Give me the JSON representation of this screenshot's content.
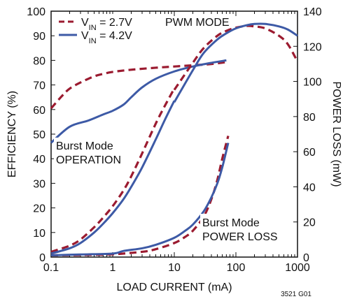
{
  "chart_data": {
    "type": "line",
    "xlabel": "LOAD CURRENT (mA)",
    "ylabel_left": "EFFICIENCY (%)",
    "ylabel_right": "POWER LOSS (mW)",
    "x_scale": "log",
    "xlim": [
      0.1,
      1000
    ],
    "ylim_left": [
      0,
      100
    ],
    "ylim_right": [
      0,
      140
    ],
    "x_ticks": [
      "0.1",
      "1",
      "10",
      "100",
      "1000"
    ],
    "y_ticks_left": [
      "0",
      "10",
      "20",
      "30",
      "40",
      "50",
      "60",
      "70",
      "80",
      "90",
      "100"
    ],
    "y_ticks_right": [
      "0",
      "20",
      "40",
      "60",
      "80",
      "100",
      "120",
      "140"
    ],
    "grid": false,
    "legend_position": "top-left",
    "colors": {
      "vin_2_7": "#9b1b30",
      "vin_4_2": "#3d5aa6",
      "axis": "#111111"
    },
    "legend": [
      {
        "main": "V",
        "sub": "IN",
        "rest": " = 2.7V",
        "style": "dashed",
        "color": "#9b1b30"
      },
      {
        "main": "V",
        "sub": "IN",
        "rest": " = 4.2V",
        "style": "solid",
        "color": "#3d5aa6"
      }
    ],
    "series": [
      {
        "key": "eff_2_7",
        "axis": "left",
        "style": "dashed",
        "color": "#9b1b30",
        "x": [
          0.1,
          0.15,
          0.2,
          0.3,
          0.5,
          0.7,
          1,
          2,
          5,
          10,
          20,
          40,
          70
        ],
        "y": [
          60.5,
          65.5,
          68.5,
          71,
          73.5,
          74.5,
          75.3,
          76.2,
          77,
          77.5,
          78,
          78.5,
          79.3
        ]
      },
      {
        "key": "eff_4_2",
        "axis": "left",
        "style": "solid",
        "color": "#3d5aa6",
        "x": [
          0.1,
          0.2,
          0.4,
          0.7,
          1,
          1.5,
          2,
          3,
          5,
          10,
          20,
          40,
          70
        ],
        "y": [
          46.5,
          53,
          55.5,
          58,
          59.5,
          62,
          65,
          69,
          72.5,
          75.5,
          77.5,
          79,
          80
        ]
      },
      {
        "key": "eff_pwm_2_7",
        "axis": "left",
        "style": "dashed",
        "color": "#9b1b30",
        "x": [
          10,
          20,
          30,
          50,
          70,
          100,
          150,
          200,
          300,
          500,
          700,
          1000
        ],
        "y": [
          68,
          79,
          85,
          90,
          92,
          93.3,
          94,
          93.8,
          93,
          90,
          86.5,
          79.5
        ]
      },
      {
        "key": "eff_pwm_4_2",
        "axis": "left",
        "style": "solid",
        "color": "#3d5aa6",
        "x": [
          10,
          20,
          30,
          50,
          70,
          100,
          150,
          200,
          300,
          500,
          700,
          1000
        ],
        "y": [
          63,
          76,
          83,
          88.5,
          91,
          93,
          94.3,
          94.8,
          94.8,
          93.8,
          92.5,
          90
        ]
      },
      {
        "key": "loss_pwm_2_7",
        "axis": "right",
        "style": "dashed",
        "color": "#9b1b30",
        "x": [
          0.1,
          0.2,
          0.3,
          0.5,
          0.7,
          1,
          1.5,
          2,
          3,
          5,
          7,
          10
        ],
        "y": [
          3,
          6.5,
          10,
          17,
          22.5,
          29,
          38,
          46,
          59,
          76,
          86,
          96
        ]
      },
      {
        "key": "loss_pwm_4_2",
        "axis": "right",
        "style": "solid",
        "color": "#3d5aa6",
        "x": [
          0.1,
          0.2,
          0.3,
          0.5,
          0.7,
          1,
          1.5,
          2,
          3,
          5,
          7,
          10
        ],
        "y": [
          2,
          5,
          8,
          14,
          19,
          25,
          33,
          40,
          51,
          67,
          78,
          89
        ]
      },
      {
        "key": "loss_burst_2_7",
        "axis": "right",
        "style": "dashed",
        "color": "#9b1b30",
        "x": [
          0.1,
          0.3,
          1,
          3,
          5,
          10,
          15,
          20,
          30,
          40,
          50,
          60,
          75
        ],
        "y": [
          1,
          1.2,
          1.6,
          3,
          4.5,
          8,
          11.5,
          15,
          23,
          33,
          44,
          56,
          69
        ]
      },
      {
        "key": "loss_burst_4_2",
        "axis": "right",
        "style": "solid",
        "color": "#3d5aa6",
        "x": [
          0.1,
          0.3,
          1,
          1.5,
          3,
          5,
          10,
          15,
          20,
          30,
          40,
          50,
          60,
          75
        ],
        "y": [
          1,
          1.5,
          2,
          3.5,
          5,
          7,
          11,
          15,
          18.5,
          26,
          34,
          42,
          51,
          65
        ]
      }
    ],
    "annotations": [
      {
        "key": "pwm_mode",
        "lines": [
          "PWM MODE"
        ]
      },
      {
        "key": "burst_op",
        "lines": [
          "Burst Mode",
          "OPERATION"
        ]
      },
      {
        "key": "burst_loss",
        "lines": [
          "Burst Mode",
          "POWER LOSS"
        ]
      }
    ],
    "figure_id": "3521 G01"
  }
}
